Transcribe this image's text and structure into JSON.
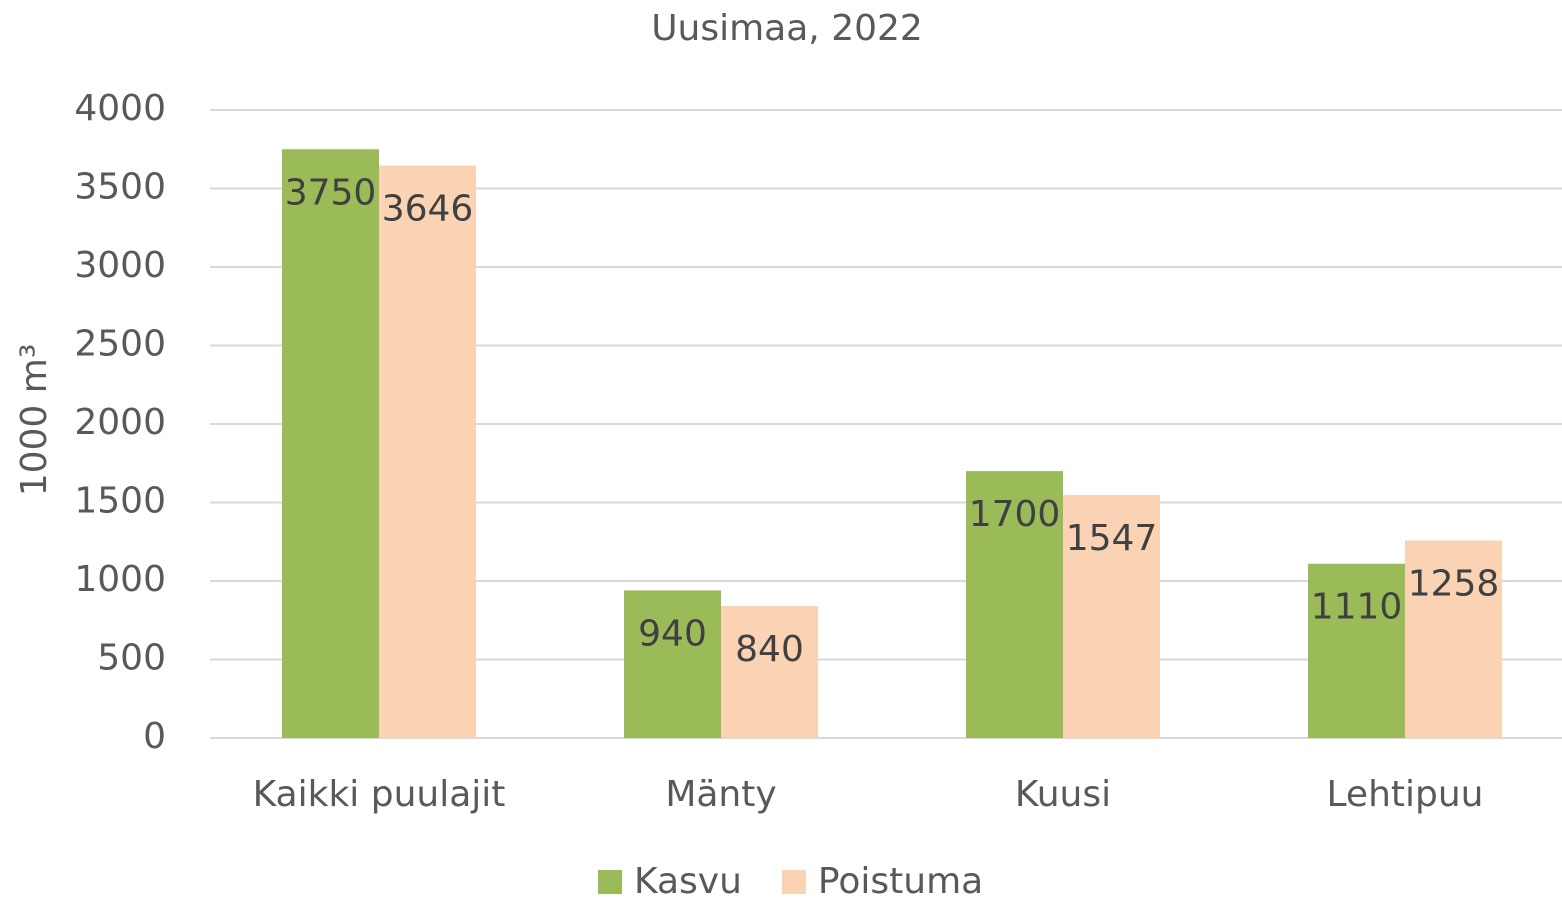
{
  "chart_data": {
    "type": "bar",
    "title": "Uusimaa, 2022",
    "y_label": "1000 m³",
    "categories": [
      "Kaikki puulajit",
      "Mänty",
      "Kuusi",
      "Lehtipuu"
    ],
    "series": [
      {
        "name": "Kasvu",
        "color": "#9bbb59",
        "values": [
          3750,
          940,
          1700,
          1110
        ]
      },
      {
        "name": "Poistuma",
        "color": "#fad2b4",
        "values": [
          3646,
          840,
          1547,
          1258
        ]
      }
    ],
    "ylim": [
      0,
      4000
    ],
    "yticks": [
      0,
      500,
      1000,
      1500,
      2000,
      2500,
      3000,
      3500,
      4000
    ],
    "grid": true,
    "legend": "bottom"
  }
}
